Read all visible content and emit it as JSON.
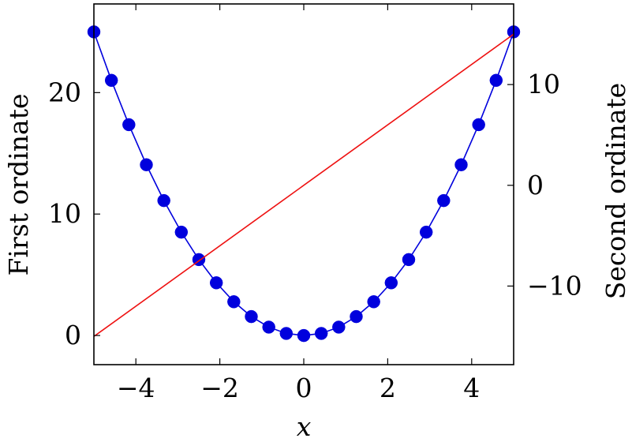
{
  "chart_data": {
    "type": "line",
    "xlabel": "x",
    "ylabel_left": "First ordinate",
    "ylabel_right": "Second ordinate",
    "xlim": [
      -5,
      5
    ],
    "ylim_left": [
      -2.4,
      27.3
    ],
    "ylim_right": [
      -17.8,
      18.0
    ],
    "x_ticks": [
      -4,
      -2,
      0,
      2,
      4
    ],
    "x_tick_labels": [
      "−4",
      "−2",
      "0",
      "2",
      "4"
    ],
    "y_left_ticks": [
      0,
      10,
      20
    ],
    "y_left_tick_labels": [
      "0",
      "10",
      "20"
    ],
    "y_right_ticks": [
      -10,
      0,
      10
    ],
    "y_right_tick_labels": [
      "−10",
      "0",
      "10"
    ],
    "grid": false,
    "series": [
      {
        "axis": "left",
        "color": "#0000dd",
        "marker": "circle",
        "x": [
          -5,
          -4.583,
          -4.167,
          -3.75,
          -3.333,
          -2.917,
          -2.5,
          -2.083,
          -1.667,
          -1.25,
          -0.833,
          -0.417,
          0,
          0.417,
          0.833,
          1.25,
          1.667,
          2.083,
          2.5,
          2.917,
          3.333,
          3.75,
          4.167,
          4.583,
          5
        ],
        "y": [
          25,
          21.01,
          17.36,
          14.06,
          11.11,
          8.51,
          6.25,
          4.34,
          2.78,
          1.56,
          0.69,
          0.17,
          0,
          0.17,
          0.69,
          1.56,
          2.78,
          4.34,
          6.25,
          8.51,
          11.11,
          14.06,
          17.36,
          21.01,
          25
        ]
      },
      {
        "axis": "right",
        "color": "#ee1111",
        "marker": "none",
        "x": [
          -5,
          5
        ],
        "y": [
          -15,
          15
        ]
      }
    ]
  }
}
